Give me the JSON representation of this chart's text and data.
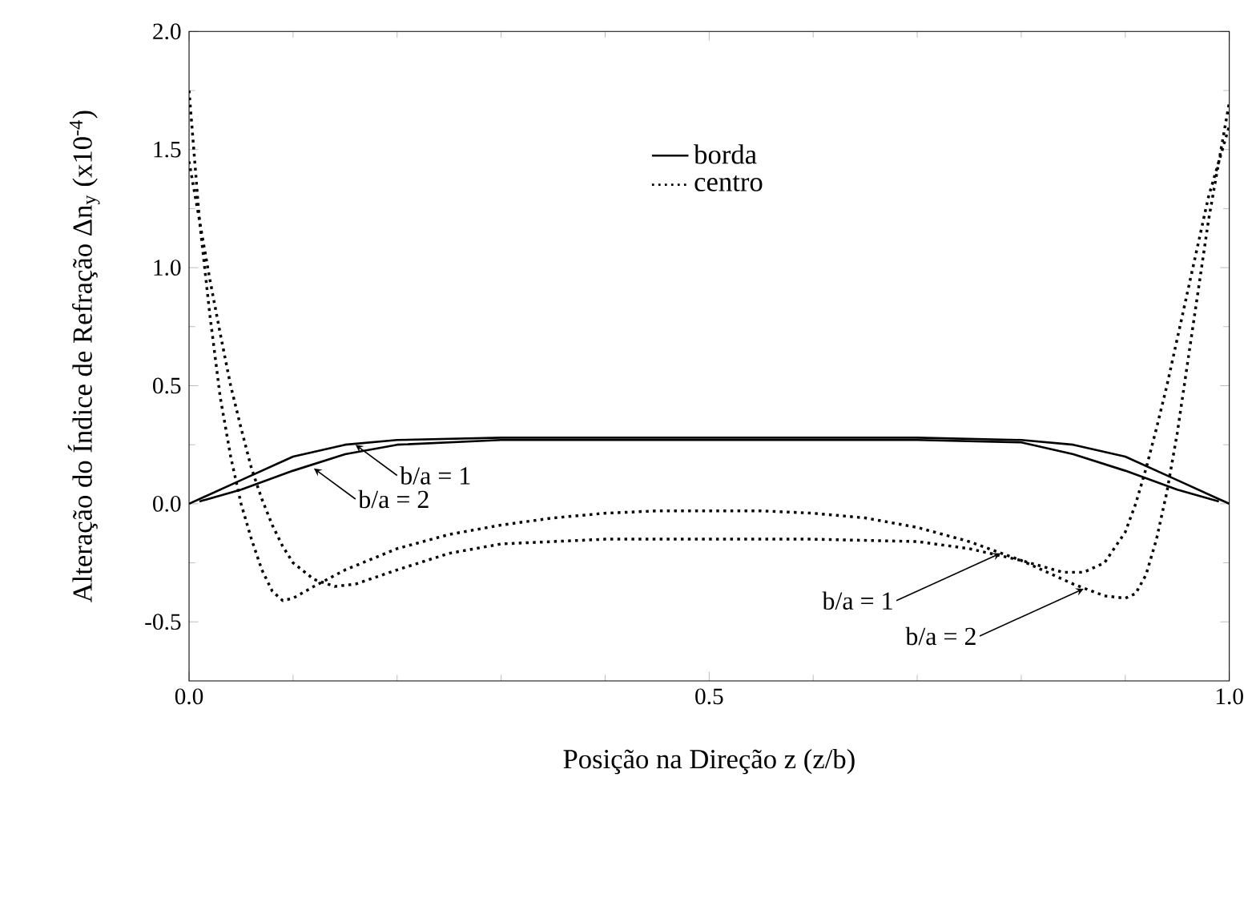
{
  "chart_data": {
    "type": "line",
    "xlabel": "Posição na Direção z  (z/b)",
    "ylabel": "Alteração do Índice de Refração  Δn$_{y}$  (x10$^{-4}$)",
    "xlim": [
      0,
      1
    ],
    "ylim": [
      -0.75,
      2.0
    ],
    "xticks": [
      {
        "value": 0,
        "label": "0.0"
      },
      {
        "value": 0.5,
        "label": "0.5"
      },
      {
        "value": 1,
        "label": "1.0"
      }
    ],
    "yticks": [
      {
        "value": -0.5,
        "label": "-0.5"
      },
      {
        "value": 0,
        "label": "0.0"
      },
      {
        "value": 0.5,
        "label": "0.5"
      },
      {
        "value": 1,
        "label": "1.0"
      },
      {
        "value": 1.5,
        "label": "1.5"
      },
      {
        "value": 2,
        "label": "2.0"
      }
    ],
    "legend": "top",
    "grid": false,
    "marker": "none",
    "series": [
      {
        "name": "borda",
        "color": "#000000",
        "line_style": "solid",
        "x": [
          0,
          0.05,
          0.1,
          0.15,
          0.2,
          0.3,
          0.5,
          0.7,
          0.8,
          0.85,
          0.9,
          0.95,
          1.0
        ],
        "values": [
          0,
          0.1,
          0.2,
          0.25,
          0.27,
          0.28,
          0.28,
          0.28,
          0.27,
          0.25,
          0.2,
          0.1,
          0
        ]
      },
      {
        "color": "#000000",
        "line_style": "solid",
        "x": [
          0.01,
          0.05,
          0.1,
          0.15,
          0.2,
          0.3,
          0.5,
          0.7,
          0.8,
          0.85,
          0.9,
          0.95,
          0.99
        ],
        "values": [
          0.01,
          0.06,
          0.14,
          0.21,
          0.25,
          0.27,
          0.27,
          0.27,
          0.26,
          0.21,
          0.14,
          0.06,
          0.01
        ]
      },
      {
        "name": "centro",
        "color": "#000000",
        "line_style": "dotted",
        "x": [
          0,
          0.01,
          0.02,
          0.03,
          0.04,
          0.05,
          0.06,
          0.07,
          0.08,
          0.09,
          0.1,
          0.12,
          0.14,
          0.16,
          0.2,
          0.25,
          0.3,
          0.4,
          0.5,
          0.6,
          0.7,
          0.75,
          0.8,
          0.84,
          0.86,
          0.88,
          0.9,
          0.91,
          0.92,
          0.93,
          0.94,
          0.95,
          0.96,
          0.97,
          0.98,
          0.99,
          1.0
        ],
        "values": [
          1.45,
          1.2,
          0.95,
          0.72,
          0.5,
          0.32,
          0.15,
          0.02,
          -0.09,
          -0.18,
          -0.25,
          -0.32,
          -0.35,
          -0.34,
          -0.28,
          -0.21,
          -0.17,
          -0.15,
          -0.15,
          -0.15,
          -0.16,
          -0.19,
          -0.24,
          -0.29,
          -0.29,
          -0.25,
          -0.12,
          0.0,
          0.15,
          0.32,
          0.5,
          0.7,
          0.9,
          1.1,
          1.3,
          1.45,
          1.6
        ]
      },
      {
        "color": "#000000",
        "line_style": "dotted",
        "x": [
          0,
          0.01,
          0.02,
          0.03,
          0.04,
          0.05,
          0.06,
          0.07,
          0.08,
          0.09,
          0.1,
          0.12,
          0.15,
          0.2,
          0.25,
          0.3,
          0.35,
          0.4,
          0.45,
          0.5,
          0.55,
          0.6,
          0.65,
          0.7,
          0.75,
          0.8,
          0.85,
          0.88,
          0.9,
          0.91,
          0.92,
          0.93,
          0.94,
          0.95,
          0.96,
          0.97,
          0.98,
          0.99,
          1.0
        ],
        "values": [
          1.75,
          1.2,
          0.8,
          0.45,
          0.2,
          0.0,
          -0.15,
          -0.28,
          -0.37,
          -0.41,
          -0.4,
          -0.35,
          -0.28,
          -0.19,
          -0.13,
          -0.09,
          -0.06,
          -0.04,
          -0.03,
          -0.03,
          -0.03,
          -0.04,
          -0.06,
          -0.1,
          -0.16,
          -0.24,
          -0.34,
          -0.39,
          -0.4,
          -0.38,
          -0.3,
          -0.15,
          0.05,
          0.3,
          0.6,
          0.9,
          1.2,
          1.45,
          1.7
        ]
      }
    ],
    "annotations": [
      {
        "text": "b/a = 1",
        "x": 0.16,
        "y": 0.25
      },
      {
        "text": "b/a = 2",
        "x": 0.12,
        "y": 0.15
      },
      {
        "text": "b/a = 1",
        "x": 0.78,
        "y": -0.21
      },
      {
        "text": "b/a = 2",
        "x": 0.86,
        "y": -0.36
      }
    ]
  }
}
